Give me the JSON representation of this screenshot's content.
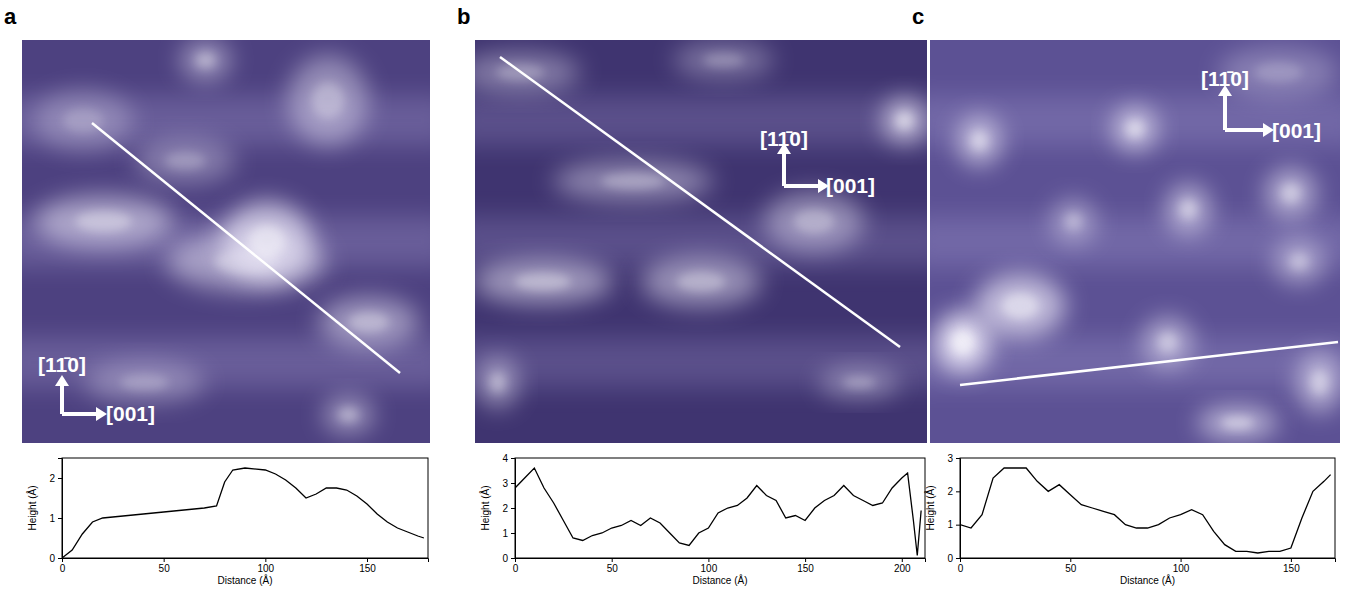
{
  "chart_data": [
    {
      "type": "line",
      "title": "a",
      "annotations": [
        "[11̄0]",
        "[001]"
      ],
      "x_label": "Distance (Å)",
      "y_label": "Height (Å)",
      "x": [
        0,
        5,
        10,
        15,
        20,
        30,
        40,
        50,
        60,
        70,
        76,
        80,
        84,
        90,
        100,
        105,
        110,
        115,
        120,
        125,
        130,
        135,
        140,
        145,
        150,
        155,
        160,
        165,
        170,
        175,
        178
      ],
      "values": [
        0.0,
        0.2,
        0.6,
        0.9,
        1.0,
        1.05,
        1.1,
        1.15,
        1.2,
        1.25,
        1.3,
        1.9,
        2.2,
        2.25,
        2.2,
        2.1,
        1.95,
        1.75,
        1.5,
        1.6,
        1.75,
        1.75,
        1.7,
        1.55,
        1.35,
        1.1,
        0.9,
        0.75,
        0.65,
        0.55,
        0.5
      ],
      "xlim": [
        0,
        180
      ],
      "ylim": [
        0,
        2.5
      ],
      "xticks": [
        0,
        50,
        100,
        150
      ],
      "yticks": [
        0,
        1,
        2
      ],
      "color": "#000000"
    },
    {
      "type": "line",
      "title": "b",
      "annotations": [
        "[11̄0]",
        "[001]"
      ],
      "x_label": "Distance (Å)",
      "y_label": "Height (Å)",
      "x": [
        0,
        5,
        10,
        15,
        20,
        25,
        30,
        35,
        40,
        45,
        50,
        55,
        60,
        65,
        70,
        75,
        80,
        85,
        90,
        95,
        100,
        105,
        110,
        115,
        120,
        125,
        130,
        135,
        140,
        145,
        150,
        155,
        160,
        165,
        170,
        175,
        180,
        185,
        190,
        195,
        200,
        203,
        206,
        208,
        210
      ],
      "values": [
        2.8,
        3.2,
        3.6,
        2.8,
        2.2,
        1.5,
        0.8,
        0.7,
        0.9,
        1.0,
        1.2,
        1.3,
        1.5,
        1.3,
        1.6,
        1.4,
        1.0,
        0.6,
        0.5,
        1.0,
        1.2,
        1.8,
        2.0,
        2.1,
        2.4,
        2.9,
        2.5,
        2.3,
        1.6,
        1.7,
        1.5,
        2.0,
        2.3,
        2.5,
        2.9,
        2.5,
        2.3,
        2.1,
        2.2,
        2.8,
        3.2,
        3.4,
        1.5,
        0.1,
        1.9
      ],
      "xlim": [
        0,
        212
      ],
      "ylim": [
        0,
        4
      ],
      "xticks": [
        0,
        50,
        100,
        150,
        200
      ],
      "yticks": [
        0,
        1,
        2,
        3,
        4
      ],
      "color": "#000000"
    },
    {
      "type": "line",
      "title": "c",
      "annotations": [
        "[11̄0]",
        "[001]"
      ],
      "x_label": "Distance (Å)",
      "y_label": "Height (Å)",
      "x": [
        0,
        5,
        10,
        15,
        20,
        25,
        30,
        35,
        40,
        45,
        50,
        55,
        60,
        65,
        70,
        75,
        80,
        85,
        90,
        95,
        100,
        105,
        110,
        115,
        120,
        125,
        130,
        135,
        140,
        145,
        150,
        155,
        160,
        165,
        168
      ],
      "values": [
        1.0,
        0.9,
        1.3,
        2.4,
        2.7,
        2.7,
        2.7,
        2.3,
        2.0,
        2.2,
        1.9,
        1.6,
        1.5,
        1.4,
        1.3,
        1.0,
        0.9,
        0.9,
        1.0,
        1.2,
        1.3,
        1.45,
        1.3,
        0.8,
        0.4,
        0.2,
        0.2,
        0.15,
        0.2,
        0.2,
        0.3,
        1.2,
        2.0,
        2.3,
        2.5
      ],
      "xlim": [
        0,
        170
      ],
      "ylim": [
        0,
        3
      ],
      "xticks": [
        0,
        50,
        100,
        150
      ],
      "yticks": [
        0,
        1,
        2,
        3
      ],
      "color": "#000000"
    }
  ]
}
